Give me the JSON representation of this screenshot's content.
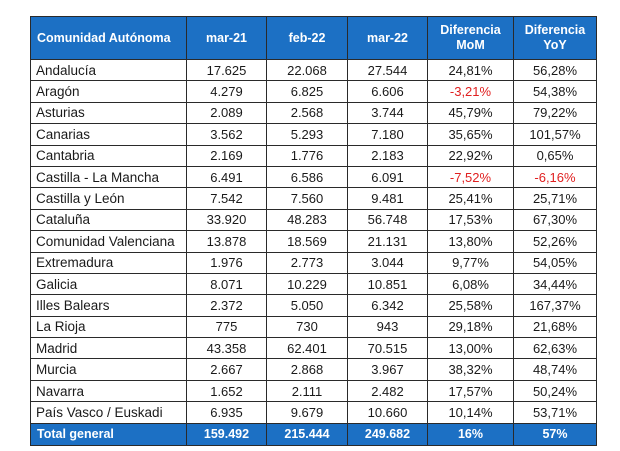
{
  "headers": [
    "Comunidad Autónoma",
    "mar-21",
    "feb-22",
    "mar-22",
    "Diferencia MoM",
    "Diferencia YoY"
  ],
  "rows": [
    {
      "name": "Andalucía",
      "mar21": "17.625",
      "feb22": "22.068",
      "mar22": "27.544",
      "mom": "24,81%",
      "yoy": "56,28%"
    },
    {
      "name": "Aragón",
      "mar21": "4.279",
      "feb22": "6.825",
      "mar22": "6.606",
      "mom": "-3,21%",
      "yoy": "54,38%"
    },
    {
      "name": "Asturias",
      "mar21": "2.089",
      "feb22": "2.568",
      "mar22": "3.744",
      "mom": "45,79%",
      "yoy": "79,22%"
    },
    {
      "name": "Canarias",
      "mar21": "3.562",
      "feb22": "5.293",
      "mar22": "7.180",
      "mom": "35,65%",
      "yoy": "101,57%"
    },
    {
      "name": "Cantabria",
      "mar21": "2.169",
      "feb22": "1.776",
      "mar22": "2.183",
      "mom": "22,92%",
      "yoy": "0,65%"
    },
    {
      "name": "Castilla - La Mancha",
      "mar21": "6.491",
      "feb22": "6.586",
      "mar22": "6.091",
      "mom": "-7,52%",
      "yoy": "-6,16%"
    },
    {
      "name": "Castilla y León",
      "mar21": "7.542",
      "feb22": "7.560",
      "mar22": "9.481",
      "mom": "25,41%",
      "yoy": "25,71%"
    },
    {
      "name": "Cataluña",
      "mar21": "33.920",
      "feb22": "48.283",
      "mar22": "56.748",
      "mom": "17,53%",
      "yoy": "67,30%"
    },
    {
      "name": "Comunidad Valenciana",
      "mar21": "13.878",
      "feb22": "18.569",
      "mar22": "21.131",
      "mom": "13,80%",
      "yoy": "52,26%"
    },
    {
      "name": "Extremadura",
      "mar21": "1.976",
      "feb22": "2.773",
      "mar22": "3.044",
      "mom": "9,77%",
      "yoy": "54,05%"
    },
    {
      "name": "Galicia",
      "mar21": "8.071",
      "feb22": "10.229",
      "mar22": "10.851",
      "mom": "6,08%",
      "yoy": "34,44%"
    },
    {
      "name": "Illes Balears",
      "mar21": "2.372",
      "feb22": "5.050",
      "mar22": "6.342",
      "mom": "25,58%",
      "yoy": "167,37%"
    },
    {
      "name": "La Rioja",
      "mar21": "775",
      "feb22": "730",
      "mar22": "943",
      "mom": "29,18%",
      "yoy": "21,68%"
    },
    {
      "name": "Madrid",
      "mar21": "43.358",
      "feb22": "62.401",
      "mar22": "70.515",
      "mom": "13,00%",
      "yoy": "62,63%"
    },
    {
      "name": "Murcia",
      "mar21": "2.667",
      "feb22": "2.868",
      "mar22": "3.967",
      "mom": "38,32%",
      "yoy": "48,74%"
    },
    {
      "name": "Navarra",
      "mar21": "1.652",
      "feb22": "2.111",
      "mar22": "2.482",
      "mom": "17,57%",
      "yoy": "50,24%"
    },
    {
      "name": "País Vasco / Euskadi",
      "mar21": "6.935",
      "feb22": "9.679",
      "mar22": "10.660",
      "mom": "10,14%",
      "yoy": "53,71%"
    }
  ],
  "total": {
    "name": "Total general",
    "mar21": "159.492",
    "feb22": "215.444",
    "mar22": "249.682",
    "mom": "16%",
    "yoy": "57%"
  },
  "colors": {
    "header_bg": "#1c70c4",
    "header_text": "#ffffff",
    "negative": "#e02020"
  }
}
